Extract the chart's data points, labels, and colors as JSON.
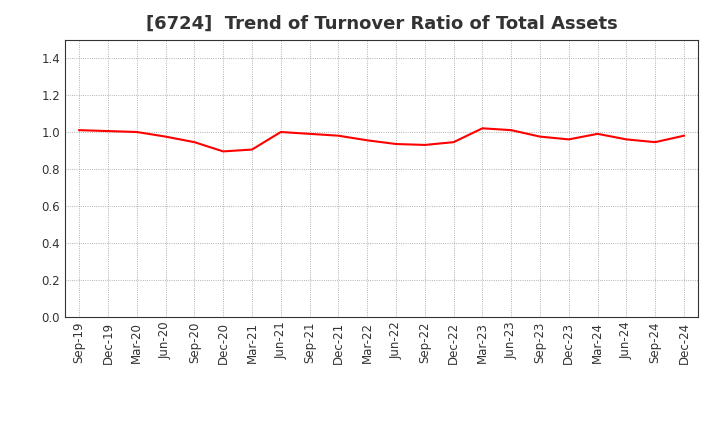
{
  "title": "[6724]  Trend of Turnover Ratio of Total Assets",
  "line_color": "#ff0000",
  "line_width": 1.5,
  "background_color": "#ffffff",
  "grid_color": "#999999",
  "ylim": [
    0.0,
    1.5
  ],
  "yticks": [
    0.0,
    0.2,
    0.4,
    0.6,
    0.8,
    1.0,
    1.2,
    1.4
  ],
  "xlabels": [
    "Sep-19",
    "Dec-19",
    "Mar-20",
    "Jun-20",
    "Sep-20",
    "Dec-20",
    "Mar-21",
    "Jun-21",
    "Sep-21",
    "Dec-21",
    "Mar-22",
    "Jun-22",
    "Sep-22",
    "Dec-22",
    "Mar-23",
    "Jun-23",
    "Sep-23",
    "Dec-23",
    "Mar-24",
    "Jun-24",
    "Sep-24",
    "Dec-24"
  ],
  "values": [
    1.01,
    1.005,
    1.0,
    0.975,
    0.945,
    0.895,
    0.905,
    1.0,
    0.99,
    0.98,
    0.955,
    0.935,
    0.93,
    0.945,
    1.02,
    1.01,
    0.975,
    0.96,
    0.99,
    0.96,
    0.945,
    0.98
  ],
  "title_fontsize": 13,
  "tick_fontsize": 8.5,
  "title_color": "#333333",
  "tick_color": "#333333",
  "spine_color": "#333333"
}
